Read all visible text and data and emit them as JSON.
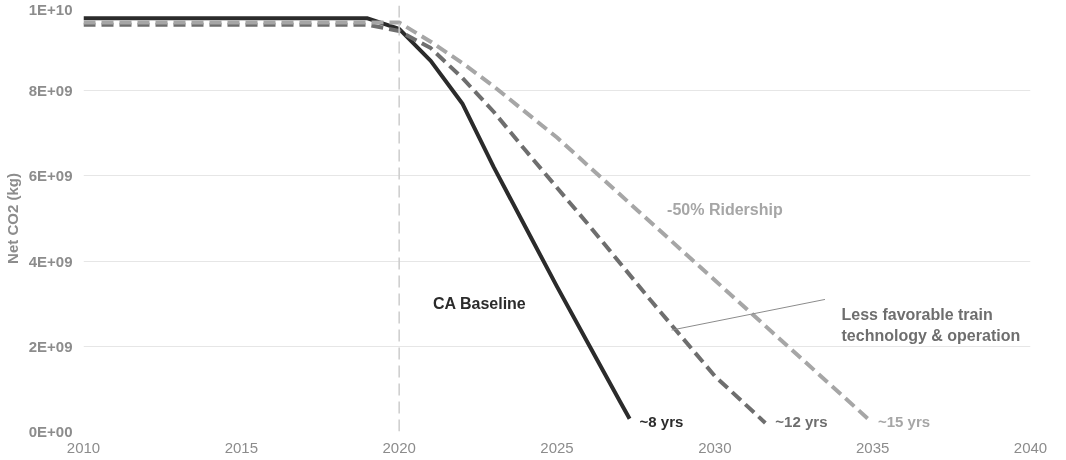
{
  "chart_data": {
    "type": "line",
    "ylabel": "Net CO2 (kg)",
    "xlim": [
      2010,
      2040
    ],
    "xticks": [
      2010,
      2015,
      2020,
      2025,
      2030,
      2035,
      2040
    ],
    "ylim": [
      0,
      10000000000
    ],
    "yticks": [
      {
        "value": 0,
        "label": "0E+00"
      },
      {
        "value": 2000000000,
        "label": "2E+09"
      },
      {
        "value": 4000000000,
        "label": "4E+09"
      },
      {
        "value": 6000000000,
        "label": "6E+09"
      },
      {
        "value": 8000000000,
        "label": "8E+09"
      },
      {
        "value": 10000000000,
        "label": "1E+10"
      }
    ],
    "grid": "y",
    "legend": false,
    "marker": "none",
    "series": [
      {
        "name": "CA Baseline",
        "color": "#2b2b2b",
        "line_style": "solid",
        "x": [
          2010,
          2019,
          2020,
          2021,
          2022,
          2023,
          2024,
          2025,
          2026,
          2027,
          2027.3
        ],
        "values": [
          9700000000,
          9700000000,
          9450000000,
          8700000000,
          7700000000,
          6200000000,
          4800000000,
          3400000000,
          2050000000,
          700000000,
          300000000
        ]
      },
      {
        "name": "Less favorable train technology & operation",
        "color": "#6e6e6e",
        "line_style": "dashed",
        "x": [
          2010,
          2019,
          2020,
          2021,
          2022,
          2023,
          2024,
          2026,
          2028,
          2030,
          2031.6
        ],
        "values": [
          9550000000,
          9550000000,
          9400000000,
          9000000000,
          8300000000,
          7500000000,
          6600000000,
          4850000000,
          3050000000,
          1300000000,
          200000000
        ]
      },
      {
        "name": "-50% Ridership",
        "color": "#a6a6a6",
        "line_style": "dashed",
        "x": [
          2010,
          2019,
          2020,
          2021,
          2022,
          2023,
          2025,
          2030,
          2034.85
        ],
        "values": [
          9600000000,
          9600000000,
          9600000000,
          9150000000,
          8650000000,
          8100000000,
          6900000000,
          3550000000,
          300000000
        ]
      }
    ],
    "ref_lines": [
      {
        "axis": "x",
        "value": 2020,
        "color": "#cccccc",
        "line_style": "dashed"
      }
    ],
    "annotations": [
      "~8 yrs",
      "~12 yrs",
      "~15 yrs"
    ]
  }
}
